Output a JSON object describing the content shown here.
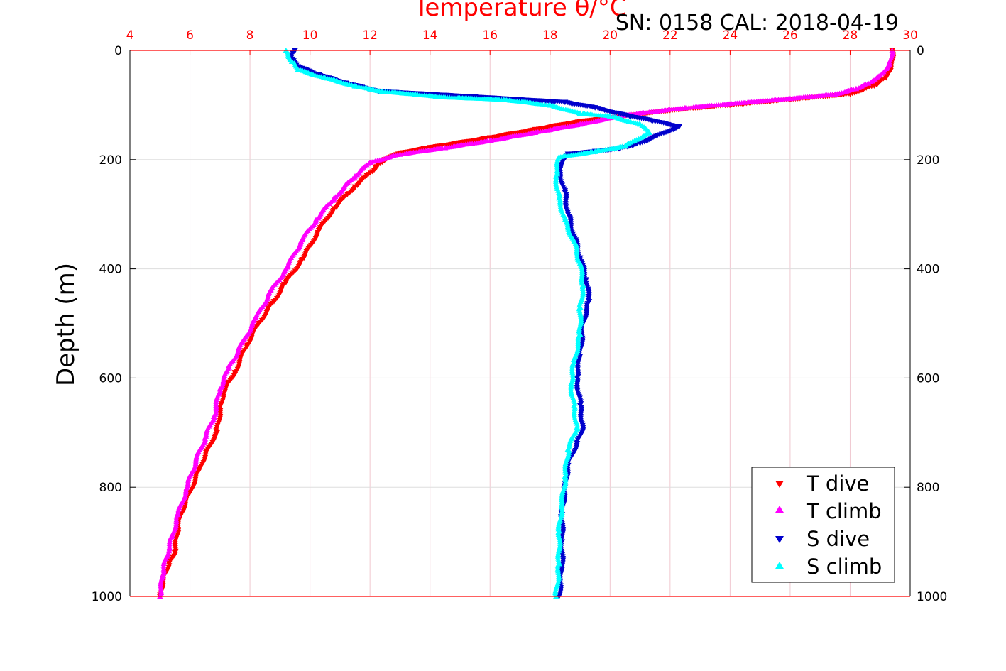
{
  "chart_data": {
    "type": "scatter",
    "title": "",
    "top_axis_label": "Temperature θ/°C",
    "annotation": "SN: 0158  CAL: 2018-04-19",
    "ylabel": "Depth (m)",
    "xlim": [
      4,
      30
    ],
    "ylim": [
      0,
      1000
    ],
    "x_ticks": [
      "4",
      "6",
      "8",
      "10",
      "12",
      "14",
      "16",
      "18",
      "20",
      "22",
      "24",
      "26",
      "28",
      "30"
    ],
    "y_ticks": [
      "0",
      "200",
      "400",
      "600",
      "800",
      "1000"
    ],
    "grid": true,
    "y_reversed": true,
    "legend_position": "bottom-right",
    "legend": [
      "T dive",
      "T climb",
      "S dive",
      "S climb"
    ],
    "colors": {
      "t_dive": "#ff0000",
      "t_climb": "#ff00ff",
      "s_dive": "#0000cc",
      "s_climb": "#00ffff",
      "axis": "#ff0000",
      "grid_x": "#f0c8d0",
      "grid_y": "#dddddd"
    },
    "series": [
      {
        "name": "T dive",
        "marker": "triangle-down",
        "color": "#ff0000",
        "x": [
          29.4,
          29.4,
          29.3,
          29.2,
          28.8,
          28.0,
          26.0,
          24.0,
          22.0,
          20.5,
          19.0,
          17.5,
          16.0,
          14.0,
          13.0,
          12.5,
          12.2,
          11.5,
          10.8,
          10.3,
          9.8,
          9.2,
          8.8,
          8.3,
          7.9,
          7.5,
          7.1,
          7.0,
          6.9,
          6.6,
          6.3,
          6.0,
          5.7,
          5.6,
          5.5,
          5.3,
          5.1,
          5.0
        ],
        "y": [
          0,
          20,
          40,
          50,
          65,
          80,
          90,
          100,
          110,
          120,
          130,
          145,
          160,
          178,
          188,
          200,
          215,
          250,
          290,
          330,
          380,
          425,
          460,
          500,
          540,
          590,
          630,
          660,
          700,
          730,
          770,
          810,
          850,
          880,
          920,
          940,
          970,
          1000
        ]
      },
      {
        "name": "T climb",
        "marker": "triangle-up",
        "color": "#ff00ff",
        "x": [
          29.4,
          29.3,
          29.0,
          28.6,
          28.2,
          27.5,
          26.0,
          24.5,
          22.5,
          20.5,
          19.0,
          17.5,
          16.0,
          14.5,
          13.0,
          12.0,
          11.5,
          10.8,
          10.2,
          9.7,
          9.2,
          8.7,
          8.2,
          7.8,
          7.3,
          7.0,
          6.8,
          6.5,
          6.2,
          5.9,
          5.6,
          5.4,
          5.2,
          5.1,
          5.0
        ],
        "y": [
          0,
          25,
          45,
          60,
          70,
          80,
          88,
          95,
          105,
          118,
          135,
          150,
          165,
          178,
          190,
          205,
          230,
          270,
          310,
          350,
          400,
          440,
          490,
          530,
          580,
          620,
          670,
          710,
          750,
          800,
          850,
          890,
          930,
          960,
          1000
        ]
      },
      {
        "name": "S dive",
        "marker": "triangle-down",
        "color": "#0000cc",
        "x": [
          9.5,
          9.3,
          9.6,
          10.3,
          11.2,
          12.3,
          15.5,
          17.0,
          18.5,
          19.5,
          20.2,
          21.5,
          22.3,
          21.0,
          20.3,
          19.5,
          18.6,
          18.3,
          18.5,
          18.6,
          18.8,
          19.0,
          19.2,
          19.3,
          19.1,
          19.0,
          18.9,
          19.0,
          19.1,
          18.9,
          18.6,
          18.5,
          18.4,
          18.4,
          18.4,
          18.3
        ],
        "y": [
          0,
          10,
          30,
          45,
          60,
          75,
          85,
          90,
          95,
          105,
          115,
          130,
          140,
          170,
          180,
          185,
          190,
          220,
          260,
          300,
          340,
          380,
          420,
          460,
          500,
          560,
          600,
          650,
          690,
          720,
          760,
          800,
          850,
          900,
          950,
          1000
        ]
      },
      {
        "name": "S climb",
        "marker": "triangle-up",
        "color": "#00ffff",
        "x": [
          9.2,
          9.4,
          9.6,
          10.5,
          11.5,
          12.4,
          13.5,
          14.3,
          16.5,
          18.0,
          19.0,
          20.0,
          21.0,
          21.3,
          20.5,
          19.5,
          18.3,
          18.2,
          18.3,
          18.5,
          18.8,
          19.0,
          19.1,
          19.0,
          19.0,
          18.8,
          18.7,
          18.8,
          18.9,
          18.6,
          18.5,
          18.4,
          18.3,
          18.3,
          18.2
        ],
        "y": [
          0,
          20,
          35,
          50,
          65,
          75,
          80,
          85,
          90,
          100,
          115,
          120,
          135,
          150,
          175,
          185,
          195,
          230,
          270,
          310,
          350,
          390,
          430,
          470,
          520,
          570,
          610,
          650,
          690,
          730,
          780,
          830,
          880,
          940,
          1000
        ]
      }
    ]
  }
}
